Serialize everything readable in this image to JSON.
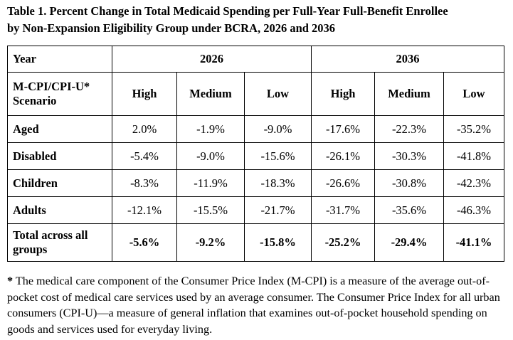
{
  "title_line1": "Table 1. Percent Change in Total Medicaid Spending per Full-Year Full-Benefit Enrollee",
  "title_line2": "by Non-Expansion Eligibility Group under BCRA, 2026 and 2036",
  "table": {
    "year_header": "Year",
    "years": [
      "2026",
      "2036"
    ],
    "scenario_header": "M-CPI/CPI-U* Scenario",
    "scenarios": [
      "High",
      "Medium",
      "Low",
      "High",
      "Medium",
      "Low"
    ],
    "rows": [
      {
        "label": "Aged",
        "values": [
          "2.0%",
          "-1.9%",
          "-9.0%",
          "-17.6%",
          "-22.3%",
          "-35.2%"
        ]
      },
      {
        "label": "Disabled",
        "values": [
          "-5.4%",
          "-9.0%",
          "-15.6%",
          "-26.1%",
          "-30.3%",
          "-41.8%"
        ]
      },
      {
        "label": "Children",
        "values": [
          "-8.3%",
          "-11.9%",
          "-18.3%",
          "-26.6%",
          "-30.8%",
          "-42.3%"
        ]
      },
      {
        "label": "Adults",
        "values": [
          "-12.1%",
          "-15.5%",
          "-21.7%",
          "-31.7%",
          "-35.6%",
          "-46.3%"
        ]
      }
    ],
    "total": {
      "label": "Total across all groups",
      "values": [
        "-5.6%",
        "-9.2%",
        "-15.8%",
        "-25.2%",
        "-29.4%",
        "-41.1%"
      ]
    }
  },
  "footnote": {
    "marker": "*",
    "text": " The medical care component of the Consumer Price Index (M-CPI) is a measure of the average out-of-pocket cost of medical care services used by an average consumer. The Consumer Price Index for all urban consumers (CPI-U)—a measure of general inflation that examines out-of-pocket household spending on goods and services used for everyday living."
  }
}
